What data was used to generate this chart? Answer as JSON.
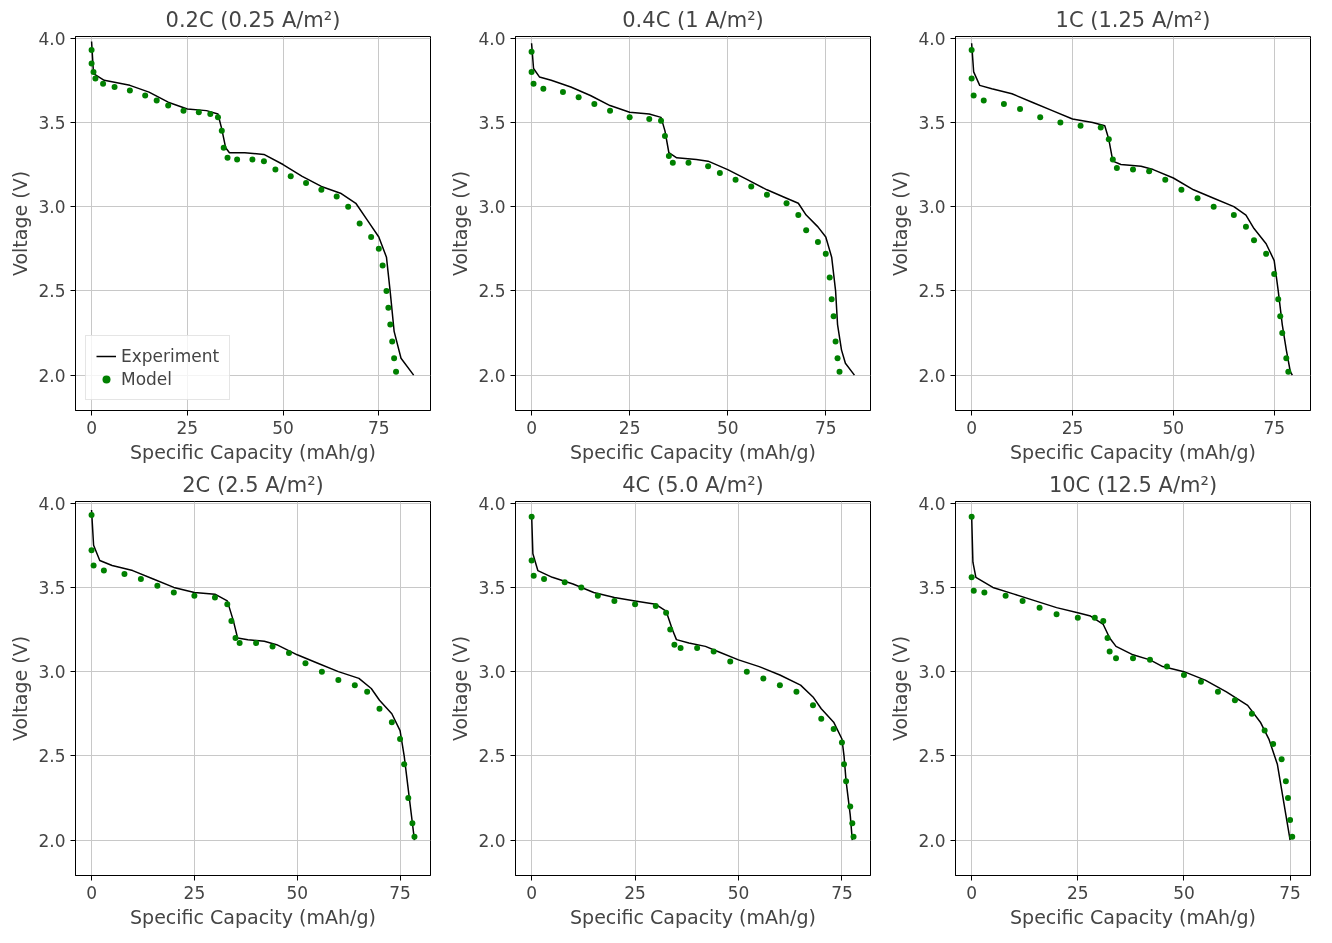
{
  "chart_data": [
    {
      "type": "line",
      "title": "0.2C (0.25 A/m²)",
      "xlabel": "Specific Capacity (mAh/g)",
      "ylabel": "Voltage (V)",
      "xlim": [
        -4.2,
        88.5
      ],
      "ylim": [
        1.79,
        4.01
      ],
      "xticks": [
        0,
        25,
        50,
        75
      ],
      "yticks": [
        {
          "value": 2,
          "label": "2.0"
        },
        {
          "value": 2.5,
          "label": "2.5"
        },
        {
          "value": 3,
          "label": "3.0"
        },
        {
          "value": 3.5,
          "label": "3.5"
        },
        {
          "value": 4,
          "label": "4.0"
        }
      ],
      "grid": true,
      "legend": "bottom left",
      "series": [
        {
          "name": "Experiment",
          "color": "#000000",
          "x": [
            0,
            0.5,
            3.3,
            10,
            15,
            20,
            25,
            30,
            33,
            34,
            35,
            36,
            40,
            45,
            50,
            55,
            60,
            65,
            69,
            72,
            75,
            77,
            78,
            79,
            80.8,
            84.1
          ],
          "values": [
            3.98,
            3.79,
            3.75,
            3.72,
            3.68,
            3.62,
            3.58,
            3.57,
            3.55,
            3.46,
            3.35,
            3.32,
            3.32,
            3.31,
            3.25,
            3.18,
            3.12,
            3.08,
            3.02,
            2.92,
            2.82,
            2.7,
            2.49,
            2.26,
            2.1,
            2.0
          ]
        },
        {
          "name": "Model",
          "type": "scatter",
          "marker": "circle",
          "color": "#008000",
          "x": [
            0,
            0,
            0.5,
            1,
            3,
            6,
            10,
            14,
            17,
            20,
            24,
            28,
            31,
            33,
            34,
            34.5,
            35.5,
            38,
            42,
            45,
            48,
            52,
            56,
            60,
            64,
            67,
            70,
            73,
            75,
            76,
            77,
            77.5,
            78,
            78.5,
            79,
            79.5
          ],
          "values": [
            3.93,
            3.85,
            3.8,
            3.76,
            3.73,
            3.71,
            3.69,
            3.66,
            3.63,
            3.6,
            3.57,
            3.56,
            3.55,
            3.53,
            3.45,
            3.35,
            3.29,
            3.28,
            3.28,
            3.27,
            3.22,
            3.18,
            3.14,
            3.1,
            3.06,
            3.0,
            2.9,
            2.82,
            2.75,
            2.65,
            2.5,
            2.4,
            2.3,
            2.2,
            2.1,
            2.02
          ]
        }
      ]
    },
    {
      "type": "line",
      "title": "0.4C (1 A/m²)",
      "xlabel": "Specific Capacity (mAh/g)",
      "ylabel": "Voltage (V)",
      "xlim": [
        -4.1,
        86.4
      ],
      "ylim": [
        1.79,
        4.01
      ],
      "xticks": [
        0,
        25,
        50,
        75
      ],
      "yticks": [
        {
          "value": 2,
          "label": "2.0"
        },
        {
          "value": 2.5,
          "label": "2.5"
        },
        {
          "value": 3,
          "label": "3.0"
        },
        {
          "value": 3.5,
          "label": "3.5"
        },
        {
          "value": 4,
          "label": "4.0"
        }
      ],
      "grid": true,
      "series": [
        {
          "type": "line",
          "color": "#000000",
          "x": [
            0,
            0.5,
            2,
            5,
            10,
            15,
            20,
            25,
            30,
            33,
            34,
            35,
            37,
            42,
            45,
            50,
            55,
            60,
            65,
            68,
            70,
            73,
            75,
            76.5,
            77.5,
            78,
            79,
            80,
            82.3
          ],
          "values": [
            3.97,
            3.82,
            3.77,
            3.75,
            3.71,
            3.66,
            3.6,
            3.56,
            3.55,
            3.53,
            3.45,
            3.32,
            3.29,
            3.28,
            3.27,
            3.22,
            3.16,
            3.1,
            3.05,
            3.02,
            2.95,
            2.88,
            2.82,
            2.7,
            2.5,
            2.3,
            2.15,
            2.07,
            2.0
          ]
        },
        {
          "type": "scatter",
          "marker": "circle",
          "color": "#008000",
          "x": [
            0,
            0,
            0.5,
            3,
            8,
            12,
            16,
            20,
            25,
            30,
            33,
            34,
            35,
            36,
            40,
            45,
            48,
            52,
            56,
            60,
            65,
            68,
            70,
            73,
            75,
            76,
            76.5,
            77,
            77.5,
            78,
            78.5
          ],
          "values": [
            3.92,
            3.8,
            3.73,
            3.7,
            3.68,
            3.65,
            3.61,
            3.57,
            3.53,
            3.52,
            3.51,
            3.42,
            3.3,
            3.26,
            3.26,
            3.24,
            3.2,
            3.16,
            3.12,
            3.07,
            3.02,
            2.95,
            2.86,
            2.79,
            2.72,
            2.58,
            2.45,
            2.35,
            2.2,
            2.1,
            2.02
          ]
        }
      ]
    },
    {
      "type": "line",
      "title": "1C (1.25 A/m²)",
      "xlabel": "Specific Capacity (mAh/g)",
      "ylabel": "Voltage (V)",
      "xlim": [
        -4,
        84
      ],
      "ylim": [
        1.79,
        4.01
      ],
      "xticks": [
        0,
        25,
        50,
        75
      ],
      "yticks": [
        {
          "value": 2,
          "label": "2.0"
        },
        {
          "value": 2.5,
          "label": "2.5"
        },
        {
          "value": 3,
          "label": "3.0"
        },
        {
          "value": 3.5,
          "label": "3.5"
        },
        {
          "value": 4,
          "label": "4.0"
        }
      ],
      "grid": true,
      "series": [
        {
          "type": "line",
          "color": "#000000",
          "x": [
            0,
            0.5,
            2,
            5,
            10,
            15,
            20,
            25,
            30,
            33,
            34,
            35,
            37,
            42,
            45,
            50,
            55,
            60,
            65,
            68,
            70,
            73,
            75,
            76,
            77,
            78,
            79,
            79.5
          ],
          "values": [
            3.97,
            3.8,
            3.72,
            3.7,
            3.67,
            3.62,
            3.57,
            3.52,
            3.5,
            3.48,
            3.4,
            3.27,
            3.25,
            3.24,
            3.22,
            3.17,
            3.1,
            3.05,
            3.0,
            2.95,
            2.87,
            2.78,
            2.68,
            2.5,
            2.3,
            2.15,
            2.02,
            2.0
          ]
        },
        {
          "type": "scatter",
          "marker": "circle",
          "color": "#008000",
          "x": [
            0,
            0,
            0.5,
            3,
            8,
            12,
            17,
            22,
            27,
            32,
            34,
            35,
            36,
            40,
            44,
            48,
            52,
            56,
            60,
            65,
            68,
            70,
            73,
            75,
            76,
            76.5,
            77,
            78,
            78.5
          ],
          "values": [
            3.93,
            3.76,
            3.66,
            3.63,
            3.61,
            3.58,
            3.53,
            3.5,
            3.48,
            3.47,
            3.4,
            3.28,
            3.23,
            3.22,
            3.21,
            3.16,
            3.1,
            3.05,
            3.0,
            2.95,
            2.88,
            2.8,
            2.72,
            2.6,
            2.45,
            2.35,
            2.25,
            2.1,
            2.02
          ]
        }
      ]
    },
    {
      "type": "line",
      "title": "2C (2.5 A/m²)",
      "xlabel": "Specific Capacity (mAh/g)",
      "ylabel": "Voltage (V)",
      "xlim": [
        -3.9,
        82.4
      ],
      "ylim": [
        1.79,
        4.01
      ],
      "xticks": [
        0,
        25,
        50,
        75
      ],
      "yticks": [
        {
          "value": 2,
          "label": "2.0"
        },
        {
          "value": 2.5,
          "label": "2.5"
        },
        {
          "value": 3,
          "label": "3.0"
        },
        {
          "value": 3.5,
          "label": "3.5"
        },
        {
          "value": 4,
          "label": "4.0"
        }
      ],
      "grid": true,
      "series": [
        {
          "type": "line",
          "color": "#000000",
          "x": [
            0,
            0.5,
            2,
            5,
            10,
            15,
            20,
            25,
            30,
            33,
            34.5,
            35.5,
            38,
            42,
            45,
            50,
            55,
            60,
            65,
            68,
            70,
            73,
            75,
            76,
            77,
            78,
            78.5
          ],
          "values": [
            3.96,
            3.75,
            3.66,
            3.63,
            3.6,
            3.55,
            3.5,
            3.47,
            3.46,
            3.42,
            3.3,
            3.2,
            3.19,
            3.18,
            3.16,
            3.1,
            3.05,
            3.0,
            2.96,
            2.9,
            2.83,
            2.75,
            2.65,
            2.5,
            2.3,
            2.1,
            2.0
          ]
        },
        {
          "type": "scatter",
          "marker": "circle",
          "color": "#008000",
          "x": [
            0,
            0,
            0.5,
            3,
            8,
            12,
            16,
            20,
            25,
            30,
            33,
            34,
            35,
            36,
            40,
            44,
            48,
            52,
            56,
            60,
            64,
            67,
            70,
            73,
            75,
            76,
            77,
            78,
            78.5
          ],
          "values": [
            3.93,
            3.72,
            3.63,
            3.6,
            3.58,
            3.55,
            3.51,
            3.47,
            3.45,
            3.44,
            3.4,
            3.3,
            3.2,
            3.17,
            3.17,
            3.15,
            3.11,
            3.05,
            3.0,
            2.95,
            2.92,
            2.88,
            2.78,
            2.7,
            2.6,
            2.45,
            2.25,
            2.1,
            2.02
          ]
        }
      ]
    },
    {
      "type": "line",
      "title": "4C (5.0 A/m²)",
      "xlabel": "Specific Capacity (mAh/g)",
      "ylabel": "Voltage (V)",
      "xlim": [
        -3.9,
        81.9
      ],
      "ylim": [
        1.79,
        4.01
      ],
      "xticks": [
        0,
        25,
        50,
        75
      ],
      "yticks": [
        {
          "value": 2,
          "label": "2.0"
        },
        {
          "value": 2.5,
          "label": "2.5"
        },
        {
          "value": 3,
          "label": "3.0"
        },
        {
          "value": 3.5,
          "label": "3.5"
        },
        {
          "value": 4,
          "label": "4.0"
        }
      ],
      "grid": true,
      "series": [
        {
          "type": "line",
          "color": "#000000",
          "x": [
            0,
            0.3,
            1.5,
            5,
            10,
            15,
            20,
            25,
            30,
            32.5,
            34,
            35,
            38,
            42,
            45,
            50,
            55,
            60,
            65,
            68,
            70,
            73,
            75,
            75.5,
            76,
            77,
            77.5
          ],
          "values": [
            3.93,
            3.7,
            3.6,
            3.56,
            3.52,
            3.47,
            3.44,
            3.42,
            3.4,
            3.36,
            3.25,
            3.19,
            3.17,
            3.15,
            3.12,
            3.07,
            3.03,
            2.98,
            2.92,
            2.85,
            2.78,
            2.7,
            2.6,
            2.5,
            2.35,
            2.15,
            2.0
          ]
        },
        {
          "type": "scatter",
          "marker": "circle",
          "color": "#008000",
          "x": [
            0,
            0,
            0.5,
            3,
            8,
            12,
            16,
            20,
            25,
            30,
            32.5,
            33.5,
            34.5,
            36,
            40,
            44,
            48,
            52,
            56,
            60,
            64,
            68,
            70,
            73,
            75,
            75.5,
            76,
            77,
            77.5,
            77.8
          ],
          "values": [
            3.92,
            3.66,
            3.57,
            3.55,
            3.53,
            3.5,
            3.45,
            3.42,
            3.4,
            3.39,
            3.35,
            3.25,
            3.16,
            3.14,
            3.14,
            3.12,
            3.06,
            3.0,
            2.96,
            2.92,
            2.88,
            2.8,
            2.72,
            2.66,
            2.58,
            2.45,
            2.35,
            2.2,
            2.1,
            2.02
          ]
        }
      ]
    },
    {
      "type": "line",
      "title": "10C (12.5 A/m²)",
      "xlabel": "Specific Capacity (mAh/g)",
      "ylabel": "Voltage (V)",
      "xlim": [
        -3.8,
        79.8
      ],
      "ylim": [
        1.79,
        4.01
      ],
      "xticks": [
        0,
        25,
        50,
        75
      ],
      "yticks": [
        {
          "value": 2,
          "label": "2.0"
        },
        {
          "value": 2.5,
          "label": "2.5"
        },
        {
          "value": 3,
          "label": "3.0"
        },
        {
          "value": 3.5,
          "label": "3.5"
        },
        {
          "value": 4,
          "label": "4.0"
        }
      ],
      "grid": true,
      "series": [
        {
          "type": "line",
          "color": "#000000",
          "x": [
            0,
            0.3,
            1,
            5,
            10,
            15,
            20,
            25,
            28,
            31,
            32.5,
            34,
            38,
            42,
            45,
            50,
            55,
            60,
            65,
            68,
            70,
            72,
            73,
            74,
            75
          ],
          "values": [
            3.93,
            3.65,
            3.56,
            3.5,
            3.46,
            3.42,
            3.38,
            3.35,
            3.33,
            3.28,
            3.2,
            3.15,
            3.1,
            3.07,
            3.03,
            3.0,
            2.95,
            2.88,
            2.8,
            2.7,
            2.6,
            2.45,
            2.3,
            2.15,
            2.0
          ]
        },
        {
          "type": "scatter",
          "marker": "circle",
          "color": "#008000",
          "x": [
            0,
            0,
            0.5,
            3,
            8,
            12,
            16,
            20,
            25,
            29,
            31,
            32,
            32.5,
            34,
            38,
            42,
            46,
            50,
            54,
            58,
            62,
            66,
            69,
            71,
            73,
            74,
            74.5,
            75,
            75.5
          ],
          "values": [
            3.92,
            3.56,
            3.48,
            3.47,
            3.45,
            3.42,
            3.38,
            3.34,
            3.32,
            3.32,
            3.3,
            3.2,
            3.12,
            3.08,
            3.08,
            3.07,
            3.03,
            2.98,
            2.94,
            2.88,
            2.83,
            2.75,
            2.65,
            2.57,
            2.48,
            2.35,
            2.25,
            2.12,
            2.02
          ]
        }
      ]
    }
  ]
}
